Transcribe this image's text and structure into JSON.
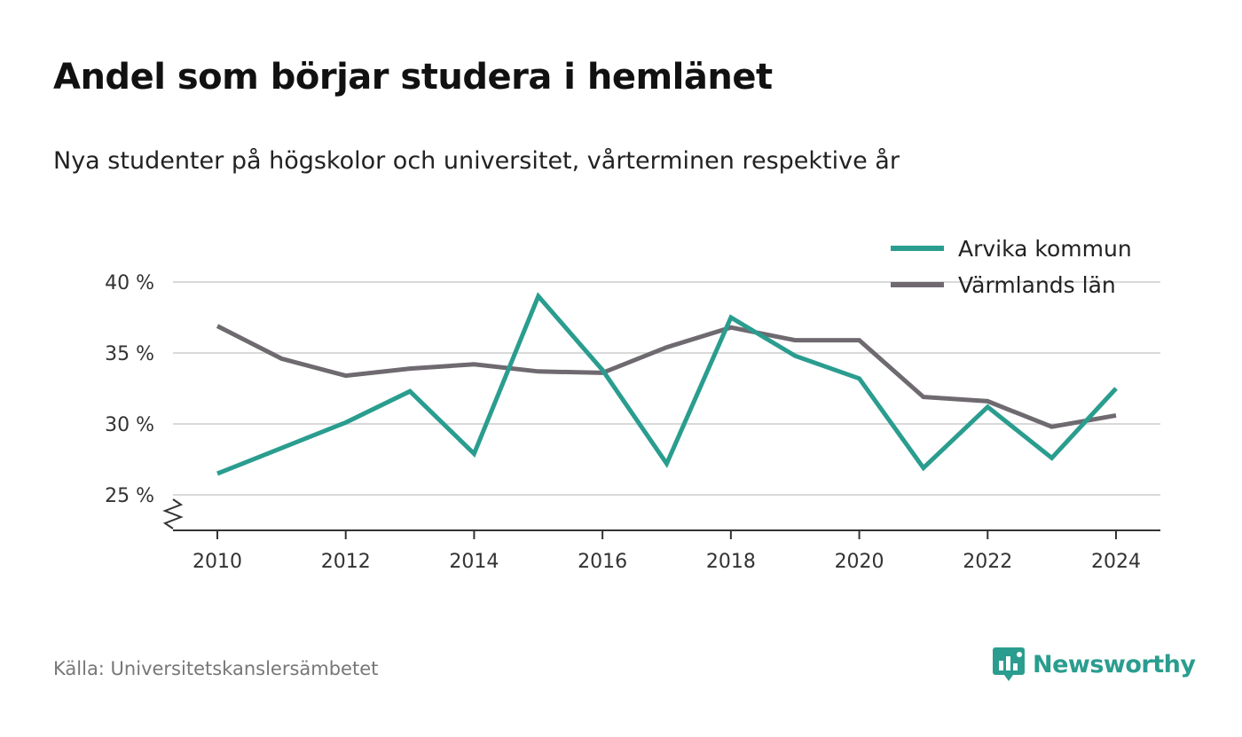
{
  "header": {
    "title": "Andel som börjar studera i hemlänet",
    "subtitle": "Nya studenter på högskolor och universitet, vårterminen respektive år"
  },
  "footer": {
    "source": "Källa: Universitetskanslersämbetet",
    "brand": "Newsworthy",
    "brand_icon": "newsworthy-logo-icon"
  },
  "chart_data": {
    "type": "line",
    "x": [
      2010,
      2011,
      2012,
      2013,
      2014,
      2015,
      2016,
      2017,
      2018,
      2019,
      2020,
      2021,
      2022,
      2023,
      2024
    ],
    "x_ticks": [
      2010,
      2012,
      2014,
      2016,
      2018,
      2020,
      2022,
      2024
    ],
    "x_tick_labels": [
      "2010",
      "2012",
      "2014",
      "2016",
      "2018",
      "2020",
      "2022",
      "2024"
    ],
    "y_ticks": [
      25,
      30,
      35,
      40
    ],
    "y_tick_labels": [
      "25 %",
      "30 %",
      "35 %",
      "40 %"
    ],
    "ylim": [
      22.5,
      40
    ],
    "y_axis_break": true,
    "grid": true,
    "legend_position": "top-right",
    "series": [
      {
        "name": "Arvika kommun",
        "color": "#2a9d8f",
        "values": [
          26.5,
          28.3,
          30.1,
          32.3,
          27.9,
          39.0,
          33.8,
          27.2,
          37.5,
          34.8,
          33.2,
          26.9,
          31.2,
          27.6,
          32.5
        ]
      },
      {
        "name": "Värmlands län",
        "color": "#6e6a70",
        "values": [
          36.9,
          34.6,
          33.4,
          33.9,
          34.2,
          33.7,
          33.6,
          35.4,
          36.8,
          35.9,
          35.9,
          31.9,
          31.6,
          29.8,
          30.6
        ]
      }
    ]
  }
}
